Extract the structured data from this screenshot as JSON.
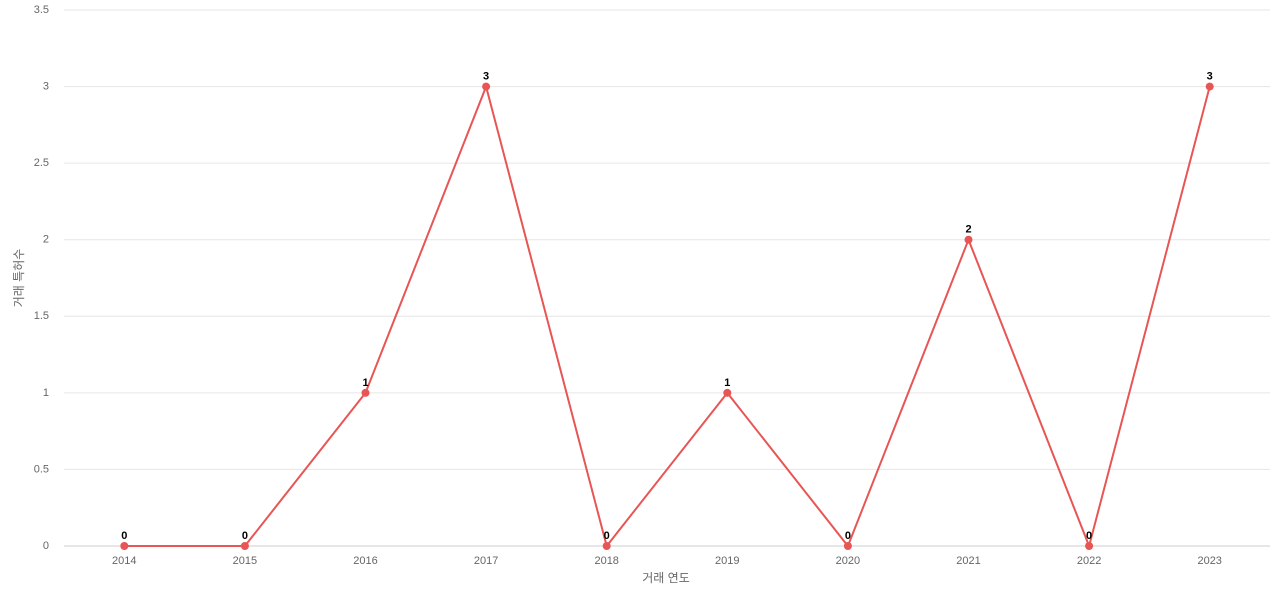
{
  "chart_data": {
    "type": "line",
    "x_label": "거래 연도",
    "y_label": "거래 특허수",
    "categories": [
      "2014",
      "2015",
      "2016",
      "2017",
      "2018",
      "2019",
      "2020",
      "2021",
      "2022",
      "2023"
    ],
    "values": [
      0,
      0,
      1,
      3,
      0,
      1,
      0,
      2,
      0,
      3
    ],
    "color": "#e85555",
    "ylim": [
      0,
      3.5
    ],
    "yticks": [
      0,
      0.5,
      1,
      1.5,
      2,
      2.5,
      3,
      3.5
    ],
    "grid": true
  }
}
